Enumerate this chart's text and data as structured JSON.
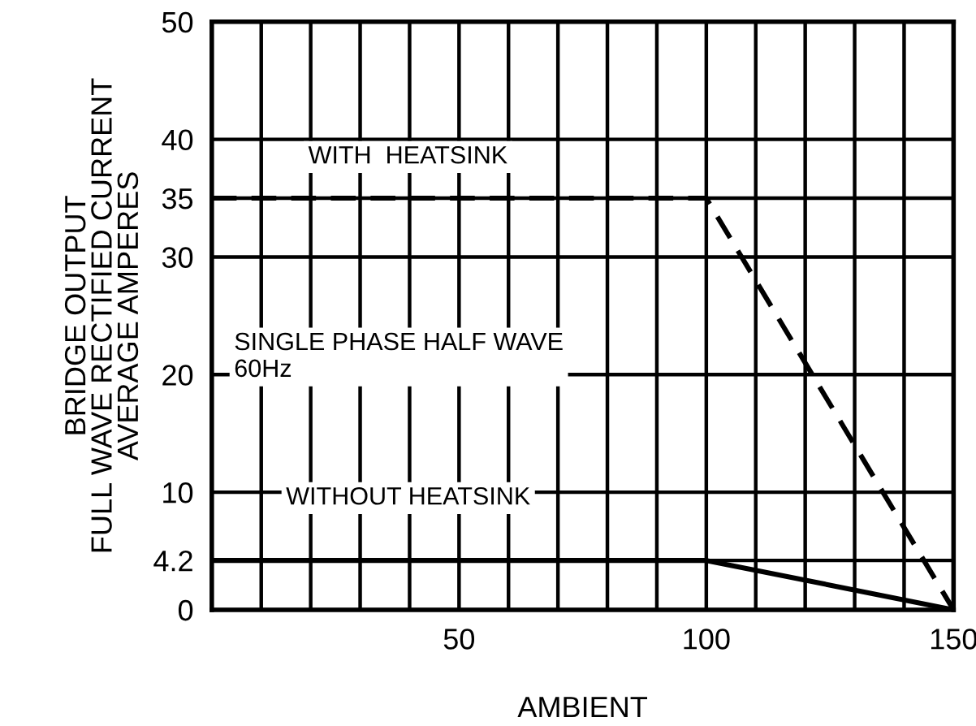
{
  "chart_data": {
    "type": "line",
    "xlabel": "AMBIENT",
    "ylabel": "BRIDGE OUTPUT\nFULL WAVE RECTIFIED CURRENT\nAVERAGE AMPERES",
    "x": [
      0,
      100,
      150
    ],
    "series": [
      {
        "name": "WITH  HEATSINK",
        "color": "#000000",
        "line_style": "dashed",
        "values": [
          35,
          35,
          0
        ]
      },
      {
        "name": "WITHOUT HEATSINK",
        "color": "#000000",
        "line_style": "solid",
        "values": [
          4.2,
          4.2,
          0
        ]
      }
    ],
    "annotations": [
      "SINGLE PHASE HALF WAVE\n60Hz"
    ],
    "xlim": [
      0,
      150
    ],
    "xticks": [
      {
        "value": 0,
        "label": null
      },
      {
        "value": 10,
        "label": null
      },
      {
        "value": 20,
        "label": null
      },
      {
        "value": 30,
        "label": null
      },
      {
        "value": 40,
        "label": null
      },
      50,
      {
        "value": 60,
        "label": null
      },
      {
        "value": 70,
        "label": null
      },
      {
        "value": 80,
        "label": null
      },
      {
        "value": 90,
        "label": null
      },
      100,
      {
        "value": 110,
        "label": null
      },
      {
        "value": 120,
        "label": null
      },
      {
        "value": 130,
        "label": null
      },
      {
        "value": 140,
        "label": null
      },
      150
    ],
    "ylim": [
      0,
      50
    ],
    "yticks": [
      0,
      4.2,
      10,
      20,
      30,
      35,
      40,
      50
    ],
    "grid": true,
    "marker": "none",
    "legend": false
  }
}
